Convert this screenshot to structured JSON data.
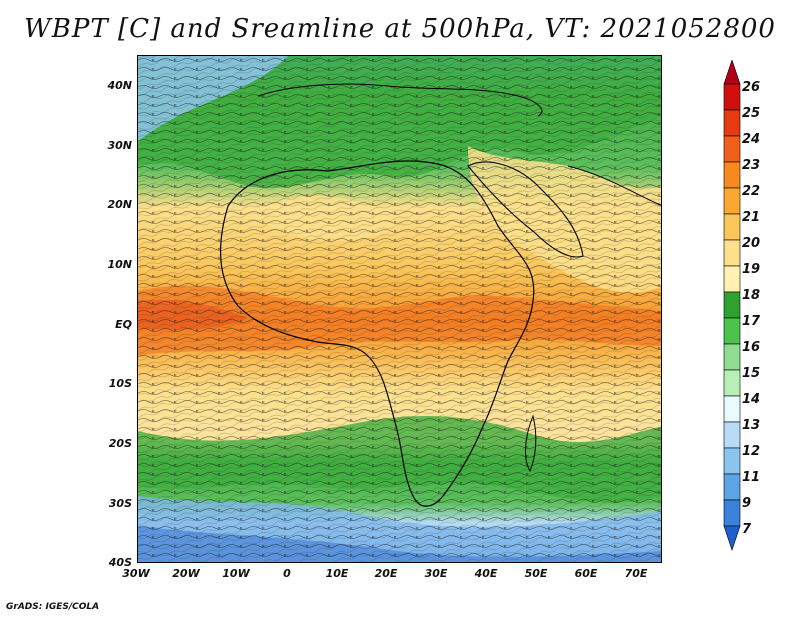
{
  "title": "WBPT [C] and Sreamline at 500hPa, VT: 2021052800",
  "credit": "GrADS: IGES/COLA",
  "map": {
    "lat_labels": [
      "40N",
      "30N",
      "20N",
      "10N",
      "EQ",
      "10S",
      "20S",
      "30S",
      "40S"
    ],
    "lon_labels": [
      "30W",
      "20W",
      "10W",
      "0",
      "10E",
      "20E",
      "30E",
      "40E",
      "50E",
      "60E",
      "70E"
    ]
  },
  "colorbar": {
    "labels": [
      "26",
      "25",
      "24",
      "23",
      "22",
      "21",
      "20",
      "19",
      "18",
      "17",
      "16",
      "15",
      "14",
      "13",
      "12",
      "11",
      "9",
      "7"
    ],
    "colors": [
      "#b0001a",
      "#d20f0f",
      "#e53a12",
      "#f0601a",
      "#f78a1e",
      "#f9a832",
      "#fbc65a",
      "#fde08c",
      "#fff0b4",
      "#2ea12e",
      "#4dc24d",
      "#90dc90",
      "#b6f0b6",
      "#e8fbff",
      "#b8dcf6",
      "#8cc4f0",
      "#5ea4e8",
      "#3a82dc",
      "#1d60cc"
    ]
  }
}
